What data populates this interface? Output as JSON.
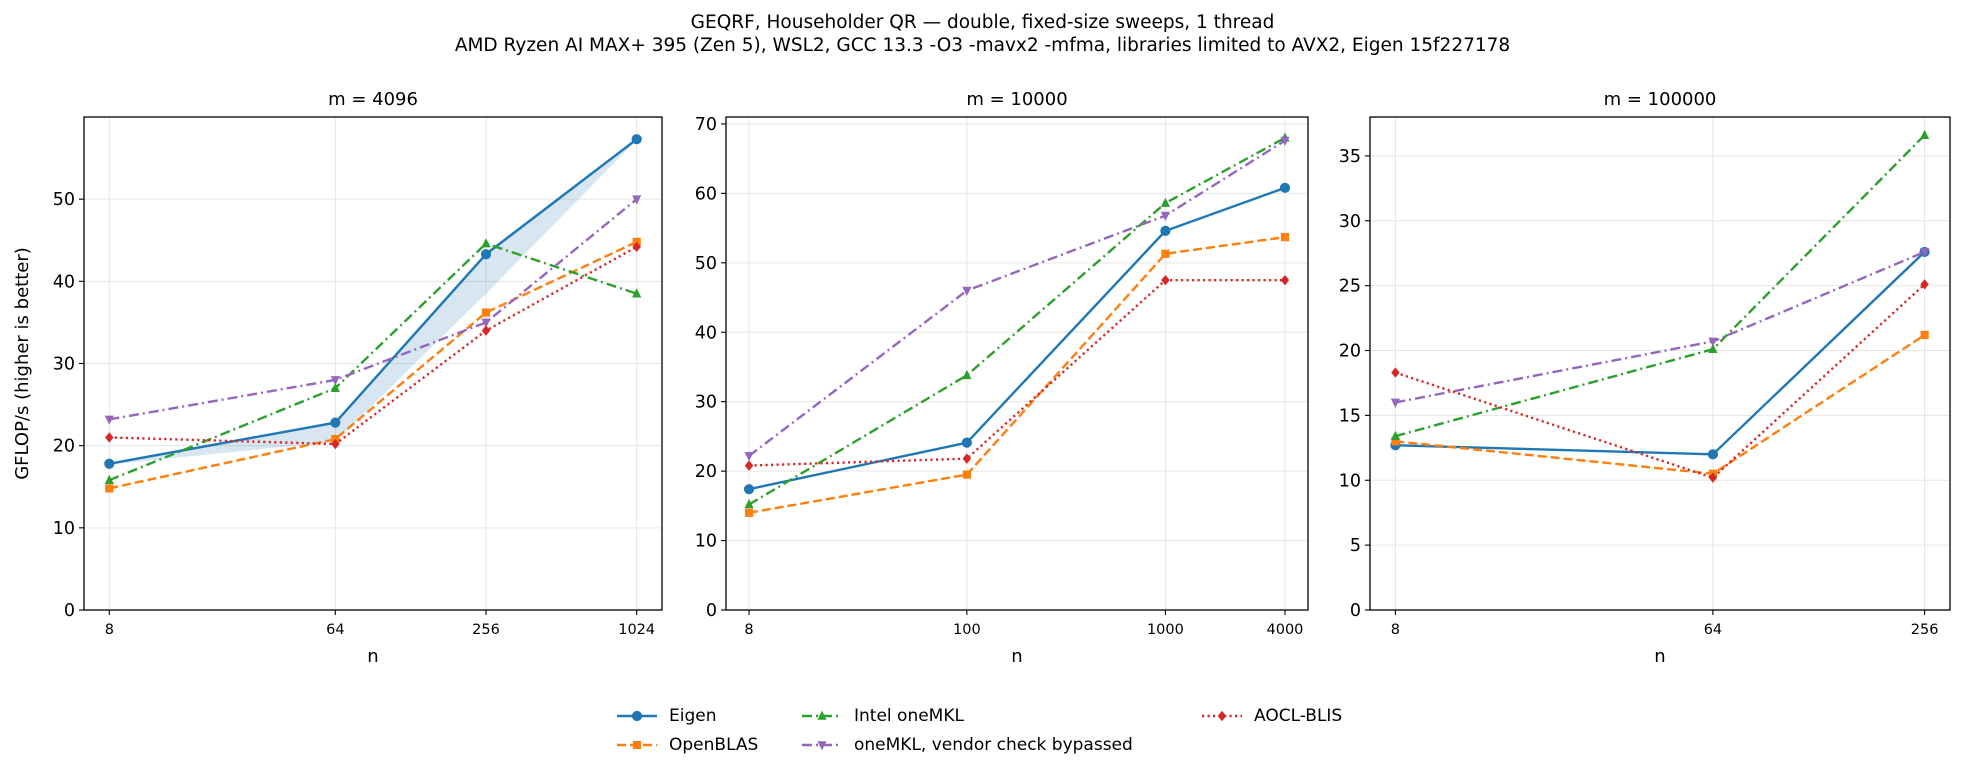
{
  "suptitle": {
    "line1": "GEQRF, Householder QR — double, fixed-size sweeps, 1 thread",
    "line2": "AMD Ryzen AI MAX+ 395 (Zen 5), WSL2, GCC 13.3 -O3 -mavx2 -mfma, libraries limited to AVX2, Eigen 15f227178"
  },
  "legend": [
    {
      "name": "Eigen",
      "color": "#1f77b4",
      "marker": "circle",
      "dash": "solid"
    },
    {
      "name": "OpenBLAS",
      "color": "#ff7f0e",
      "marker": "square",
      "dash": "dashed"
    },
    {
      "name": "Intel oneMKL",
      "color": "#2ca02c",
      "marker": "triangle-up",
      "dash": "dashdot"
    },
    {
      "name": "oneMKL, vendor check bypassed",
      "color": "#9467bd",
      "marker": "triangle-down",
      "dash": "dashdot"
    },
    {
      "name": "AOCL-BLIS",
      "color": "#d62728",
      "marker": "diamond",
      "dash": "dotted"
    }
  ],
  "chart_data": [
    {
      "type": "line",
      "title": "m = 4096",
      "xlabel": "n",
      "ylabel": "GFLOP/s (higher is better)",
      "xscale": "log2",
      "x": [
        8,
        64,
        256,
        1024
      ],
      "xticklabels": [
        "8",
        "64",
        "256",
        "1024"
      ],
      "ylim": [
        0,
        60
      ],
      "yticks": [
        0,
        10,
        20,
        30,
        40,
        50
      ],
      "grid": true,
      "band": {
        "series": "Eigen",
        "lower": [
          17.7,
          20.5,
          38.5,
          57.2
        ],
        "upper": [
          17.9,
          23.0,
          43.6,
          57.4
        ],
        "color": "#1f77b4"
      },
      "series": [
        {
          "name": "Eigen",
          "values": [
            17.8,
            22.8,
            43.3,
            57.3
          ]
        },
        {
          "name": "OpenBLAS",
          "values": [
            14.8,
            20.8,
            36.2,
            44.8
          ]
        },
        {
          "name": "Intel oneMKL",
          "values": [
            15.8,
            27.0,
            44.6,
            38.5
          ]
        },
        {
          "name": "oneMKL, vendor check bypassed",
          "values": [
            23.2,
            28.0,
            35.0,
            50.0
          ]
        },
        {
          "name": "AOCL-BLIS",
          "values": [
            21.0,
            20.2,
            34.0,
            44.2
          ]
        }
      ]
    },
    {
      "type": "line",
      "title": "m = 10000",
      "xlabel": "n",
      "ylabel": "",
      "xscale": "log10",
      "x": [
        8,
        100,
        1000,
        4000
      ],
      "xticklabels": [
        "8",
        "100",
        "1000",
        "4000"
      ],
      "ylim": [
        0,
        71
      ],
      "yticks": [
        0,
        10,
        20,
        30,
        40,
        50,
        60,
        70
      ],
      "grid": true,
      "series": [
        {
          "name": "Eigen",
          "values": [
            17.4,
            24.1,
            54.6,
            60.8
          ]
        },
        {
          "name": "OpenBLAS",
          "values": [
            14.0,
            19.5,
            51.3,
            53.7
          ]
        },
        {
          "name": "Intel oneMKL",
          "values": [
            15.2,
            33.8,
            58.6,
            68.0
          ]
        },
        {
          "name": "oneMKL, vendor check bypassed",
          "values": [
            22.2,
            46.0,
            56.8,
            67.6
          ]
        },
        {
          "name": "AOCL-BLIS",
          "values": [
            20.8,
            21.8,
            47.5,
            47.5
          ]
        }
      ]
    },
    {
      "type": "line",
      "title": "m = 100000",
      "xlabel": "n",
      "ylabel": "",
      "xscale": "log2",
      "x": [
        8,
        64,
        256
      ],
      "xticklabels": [
        "8",
        "64",
        "256"
      ],
      "ylim": [
        0,
        38
      ],
      "yticks": [
        0,
        5,
        10,
        15,
        20,
        25,
        30,
        35
      ],
      "grid": true,
      "series": [
        {
          "name": "Eigen",
          "values": [
            12.7,
            12.0,
            27.6
          ]
        },
        {
          "name": "OpenBLAS",
          "values": [
            13.0,
            10.5,
            21.2
          ]
        },
        {
          "name": "Intel oneMKL",
          "values": [
            13.4,
            20.1,
            36.6
          ]
        },
        {
          "name": "oneMKL, vendor check bypassed",
          "values": [
            16.0,
            20.7,
            27.6
          ]
        },
        {
          "name": "AOCL-BLIS",
          "values": [
            18.3,
            10.2,
            25.1
          ]
        }
      ]
    }
  ]
}
